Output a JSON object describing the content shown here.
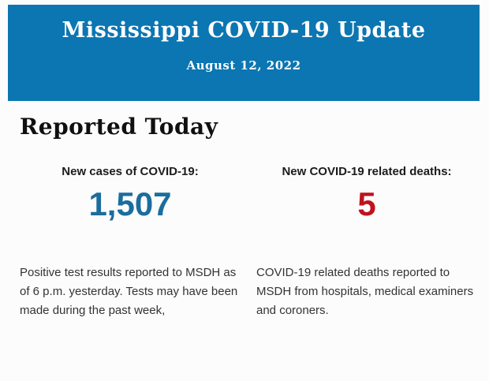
{
  "banner": {
    "title": "Mississippi COVID-19 Update",
    "date": "August 12, 2022"
  },
  "heading": "Reported Today",
  "stats": [
    {
      "label": "New cases of COVID-19:",
      "value": "1,507",
      "color": "#1b6d9e",
      "description": "Positive test results reported to MSDH as of 6 p.m. yesterday. Tests may have been made during the past week,"
    },
    {
      "label": "New COVID-19 related deaths:",
      "value": "5",
      "color": "#c0121f",
      "description": "COVID-19 related deaths reported to MSDH from hospitals, medical examiners and coroners."
    }
  ],
  "colors": {
    "page_bg": "#fcfcfc",
    "banner_bg": "#0b76b1",
    "banner_text": "#fdfdff",
    "cases_value": "#1b6d9e",
    "deaths_value": "#c0121f",
    "body_text": "#333333"
  }
}
